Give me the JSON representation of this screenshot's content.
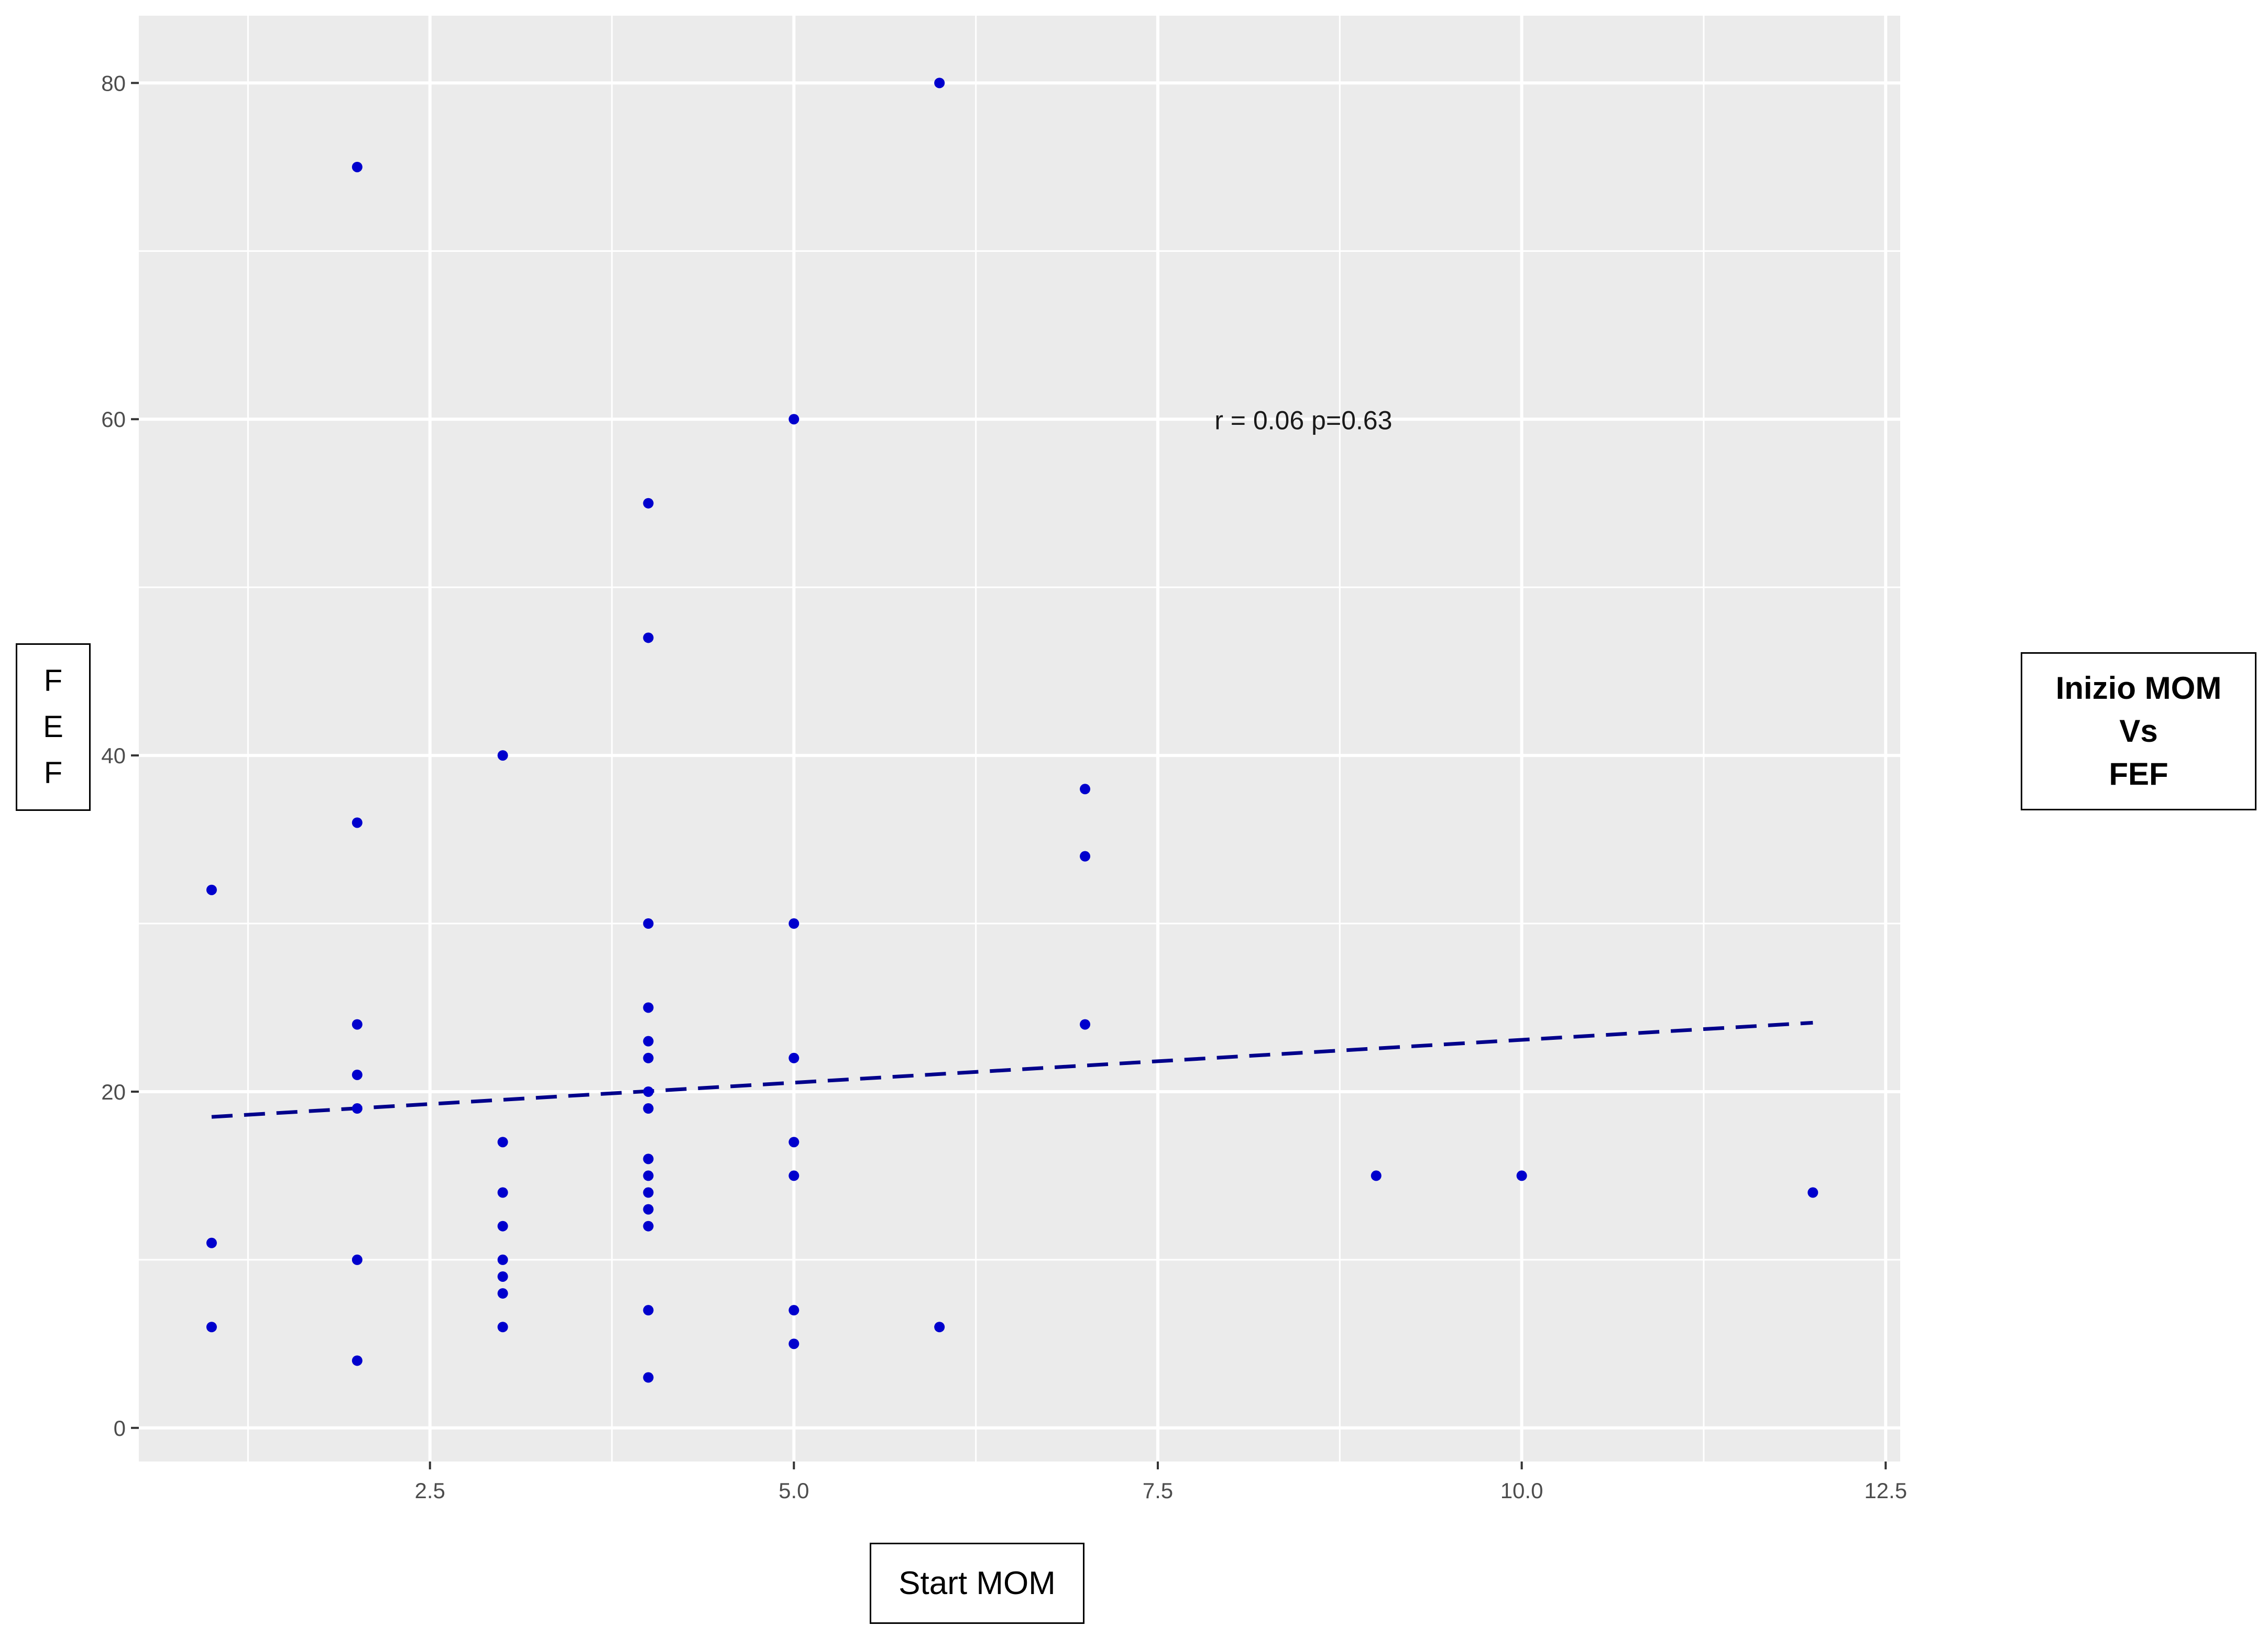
{
  "chart_data": {
    "type": "scatter",
    "title_lines": [
      "Inizio MOM",
      "Vs",
      "FEF"
    ],
    "xlabel": "Start MOM",
    "ylabel_letters": [
      "F",
      "E",
      "F"
    ],
    "annotation": "r = 0.06 p=0.63",
    "xlim": [
      0.5,
      12.6
    ],
    "ylim": [
      -2,
      84
    ],
    "x_ticks": [
      2.5,
      5.0,
      7.5,
      10.0,
      12.5
    ],
    "x_tick_labels": [
      "2.5",
      "5.0",
      "7.5",
      "10.0",
      "12.5"
    ],
    "y_ticks": [
      0,
      20,
      40,
      60,
      80
    ],
    "y_tick_labels": [
      "0",
      "20",
      "40",
      "60",
      "80"
    ],
    "grid": true,
    "panel_color": "#EBEBEB",
    "point_color": "#0000CD",
    "trend_color": "#00008B",
    "points": [
      {
        "x": 1,
        "y": 32
      },
      {
        "x": 1,
        "y": 11
      },
      {
        "x": 1,
        "y": 6
      },
      {
        "x": 2,
        "y": 75
      },
      {
        "x": 2,
        "y": 36
      },
      {
        "x": 2,
        "y": 24
      },
      {
        "x": 2,
        "y": 21
      },
      {
        "x": 2,
        "y": 19
      },
      {
        "x": 2,
        "y": 10
      },
      {
        "x": 2,
        "y": 4
      },
      {
        "x": 3,
        "y": 40
      },
      {
        "x": 3,
        "y": 17
      },
      {
        "x": 3,
        "y": 14
      },
      {
        "x": 3,
        "y": 12
      },
      {
        "x": 3,
        "y": 10
      },
      {
        "x": 3,
        "y": 9
      },
      {
        "x": 3,
        "y": 8
      },
      {
        "x": 3,
        "y": 6
      },
      {
        "x": 4,
        "y": 55
      },
      {
        "x": 4,
        "y": 47
      },
      {
        "x": 4,
        "y": 30
      },
      {
        "x": 4,
        "y": 25
      },
      {
        "x": 4,
        "y": 23
      },
      {
        "x": 4,
        "y": 22
      },
      {
        "x": 4,
        "y": 20
      },
      {
        "x": 4,
        "y": 19
      },
      {
        "x": 4,
        "y": 16
      },
      {
        "x": 4,
        "y": 15
      },
      {
        "x": 4,
        "y": 14
      },
      {
        "x": 4,
        "y": 13
      },
      {
        "x": 4,
        "y": 12
      },
      {
        "x": 4,
        "y": 7
      },
      {
        "x": 4,
        "y": 3
      },
      {
        "x": 5,
        "y": 60
      },
      {
        "x": 5,
        "y": 30
      },
      {
        "x": 5,
        "y": 22
      },
      {
        "x": 5,
        "y": 17
      },
      {
        "x": 5,
        "y": 15
      },
      {
        "x": 5,
        "y": 7
      },
      {
        "x": 5,
        "y": 5
      },
      {
        "x": 6,
        "y": 80
      },
      {
        "x": 6,
        "y": 6
      },
      {
        "x": 7,
        "y": 38
      },
      {
        "x": 7,
        "y": 34
      },
      {
        "x": 7,
        "y": 24
      },
      {
        "x": 9,
        "y": 15
      },
      {
        "x": 10,
        "y": 15
      },
      {
        "x": 12,
        "y": 14
      }
    ],
    "trend_line": {
      "x": [
        1,
        12
      ],
      "y": [
        18.5,
        24.1
      ],
      "style": "dashed"
    }
  }
}
